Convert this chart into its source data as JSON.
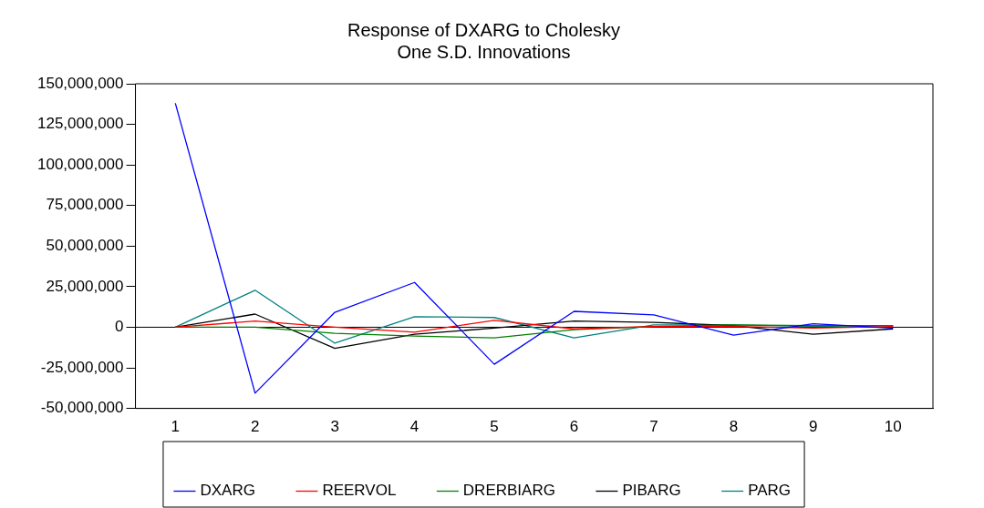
{
  "chart_data": {
    "type": "line",
    "title": "Response of DXARG to Cholesky",
    "subtitle": "One S.D. Innovations",
    "categories": [
      "1",
      "2",
      "3",
      "4",
      "5",
      "6",
      "7",
      "8",
      "9",
      "10"
    ],
    "series": [
      {
        "name": "DXARG",
        "color": "#0000ff",
        "values": [
          138000000,
          -40600000,
          9200000,
          27600000,
          -22800000,
          9800000,
          7600000,
          -4900000,
          2200000,
          -500000
        ]
      },
      {
        "name": "REERVOL",
        "color": "#ff0000",
        "values": [
          0,
          3800000,
          0,
          -3000000,
          4300000,
          -1000000,
          500000,
          500000,
          -500000,
          500000
        ]
      },
      {
        "name": "DRERBIARG",
        "color": "#008000",
        "values": [
          0,
          0,
          -3800000,
          -5400000,
          -6500000,
          -1500000,
          500000,
          1500000,
          1000000,
          1000000
        ]
      },
      {
        "name": "PIBARG",
        "color": "#000000",
        "values": [
          0,
          8100000,
          -13000000,
          -4300000,
          -500000,
          3800000,
          3000000,
          1000000,
          -4300000,
          -1000000
        ]
      },
      {
        "name": "PARG",
        "color": "#008080",
        "values": [
          0,
          22800000,
          -9800000,
          6500000,
          6000000,
          -6500000,
          1500000,
          1500000,
          500000,
          1000000
        ]
      }
    ],
    "ylim": [
      -50000000,
      150000000
    ],
    "yticks": [
      {
        "value": -50000000,
        "label": "-50,000,000"
      },
      {
        "value": -25000000,
        "label": "-25,000,000"
      },
      0,
      {
        "value": 25000000,
        "label": "25,000,000"
      },
      {
        "value": 50000000,
        "label": "50,000,000"
      },
      {
        "value": 75000000,
        "label": "75,000,000"
      },
      {
        "value": 100000000,
        "label": "100,000,000"
      },
      {
        "value": 125000000,
        "label": "125,000,000"
      },
      {
        "value": 150000000,
        "label": "150,000,000"
      }
    ],
    "ref_lines": [
      {
        "axis": "y",
        "value": 0,
        "color": "#000000"
      }
    ],
    "grid": false,
    "legend": "bottom",
    "marker": "none",
    "line_style": "solid"
  }
}
